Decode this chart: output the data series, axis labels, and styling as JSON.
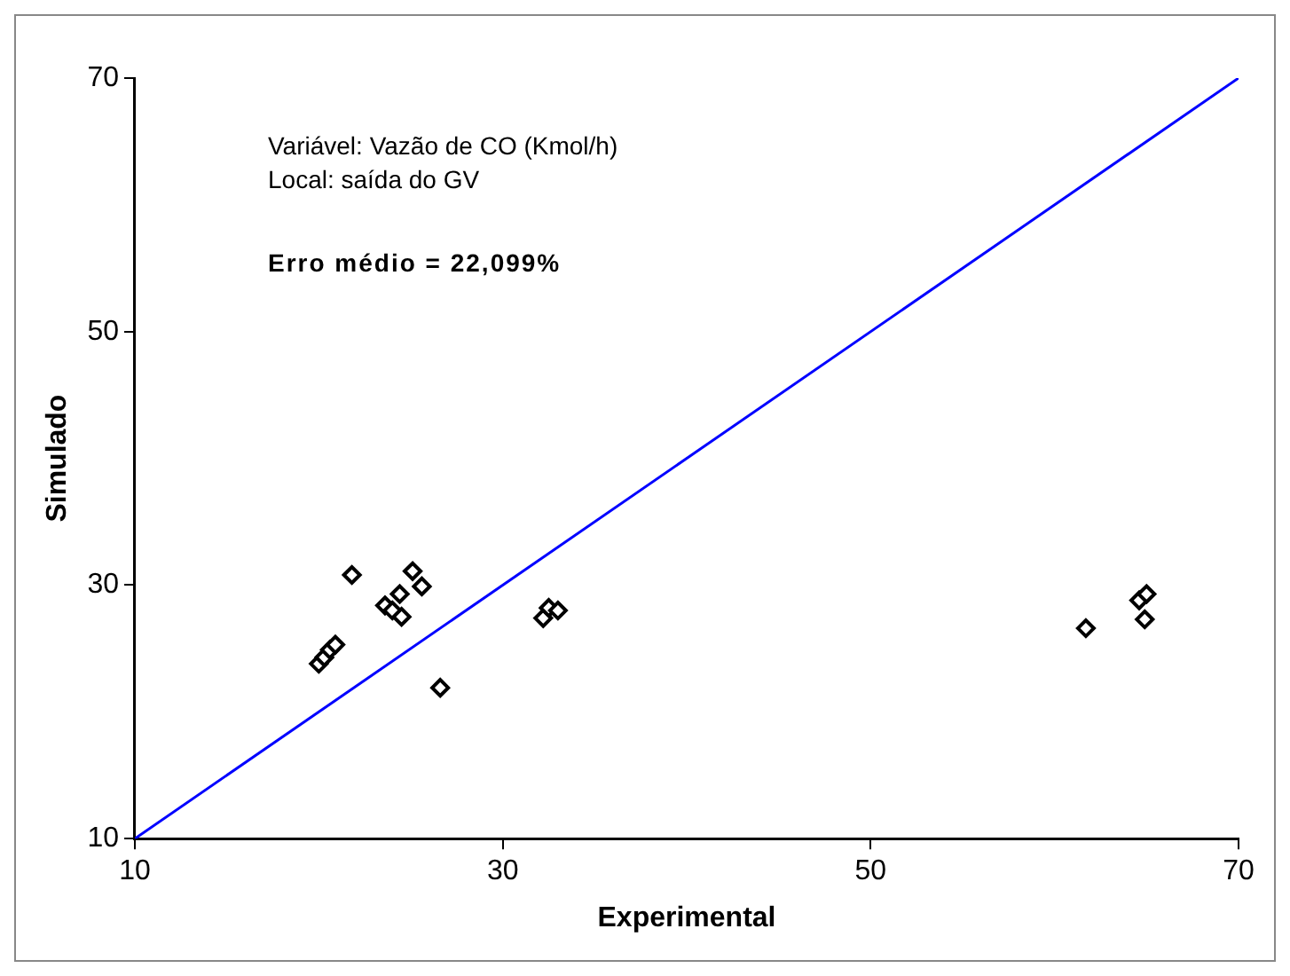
{
  "chart_data": {
    "type": "scatter",
    "xlabel": "Experimental",
    "ylabel": "Simulado",
    "annotations": [
      "Variável: Vazão de CO (Kmol/h)",
      "Local: saída do GV",
      "Erro médio = 22,099%"
    ],
    "xlim": [
      10,
      70
    ],
    "ylim": [
      10,
      70
    ],
    "xticks": [
      10,
      30,
      50,
      70
    ],
    "yticks": [
      10,
      30,
      50,
      70
    ],
    "grid": false,
    "legend": false,
    "series": [
      {
        "marker": "diamond",
        "color": "#000000",
        "x": [
          20.0,
          20.3,
          20.6,
          20.9,
          21.8,
          23.6,
          24.0,
          24.5,
          24.4,
          25.1,
          25.6,
          26.6,
          32.2,
          32.5,
          33.0,
          61.7,
          64.6,
          65.0,
          64.9
        ],
        "values": [
          23.8,
          24.3,
          24.9,
          25.3,
          30.8,
          28.4,
          28.0,
          27.5,
          29.3,
          31.1,
          29.9,
          21.9,
          27.4,
          28.2,
          28.0,
          26.6,
          28.8,
          29.3,
          27.3
        ]
      },
      {
        "type": "line",
        "marker": "none",
        "color": "#0000ff",
        "x": [
          10,
          70
        ],
        "values": [
          10,
          70
        ]
      }
    ]
  }
}
